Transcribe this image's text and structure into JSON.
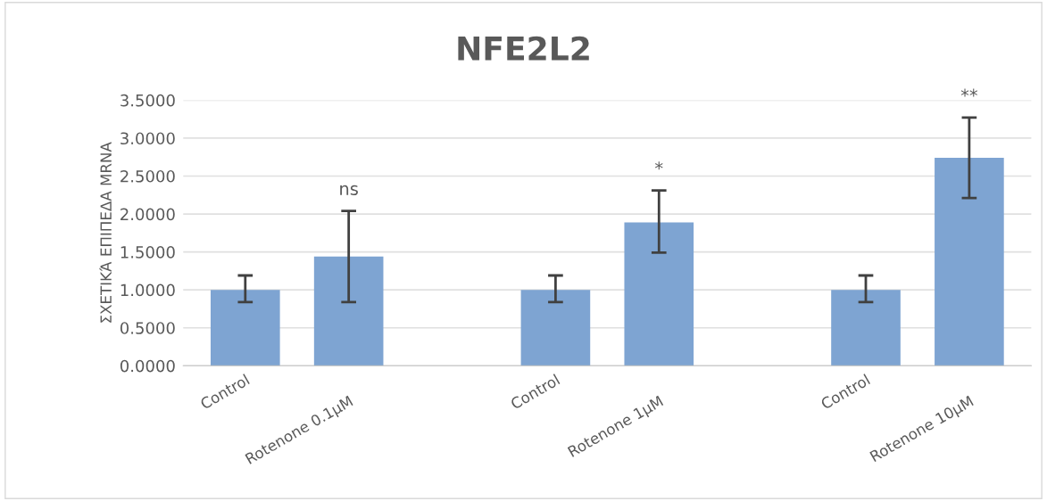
{
  "chart_data": {
    "type": "bar",
    "title": "NFE2L2",
    "ylabel": "ΣΧΕΤΙΚΆ ΕΠΙΠΕΔΑ MRNA",
    "categories": [
      "Control",
      "Rotenone 0.1μM",
      null,
      "Control",
      "Rotenone 1μM",
      null,
      "Control",
      "Rotenone 10μM"
    ],
    "values": [
      1.0,
      1.44,
      null,
      1.0,
      1.89,
      null,
      1.0,
      2.74
    ],
    "errors": [
      [
        0.84,
        1.19
      ],
      [
        0.84,
        2.04
      ],
      null,
      [
        0.84,
        1.19
      ],
      [
        1.49,
        2.31
      ],
      null,
      [
        0.84,
        1.19
      ],
      [
        2.21,
        3.27
      ]
    ],
    "color": "#7ea4d2",
    "ylim": [
      0,
      3.5
    ],
    "yticks": [
      {
        "value": 0,
        "label": "0.0000"
      },
      {
        "value": 0.5,
        "label": "0.5000"
      },
      {
        "value": 1,
        "label": "1.0000"
      },
      {
        "value": 1.5,
        "label": "1.5000"
      },
      {
        "value": 2,
        "label": "2.0000"
      },
      {
        "value": 2.5,
        "label": "2.5000"
      },
      {
        "value": 3,
        "label": "3.0000"
      },
      {
        "value": 3.5,
        "label": "3.5000"
      }
    ],
    "grid": "y",
    "annotations": [
      "ns",
      "*",
      "**"
    ]
  }
}
